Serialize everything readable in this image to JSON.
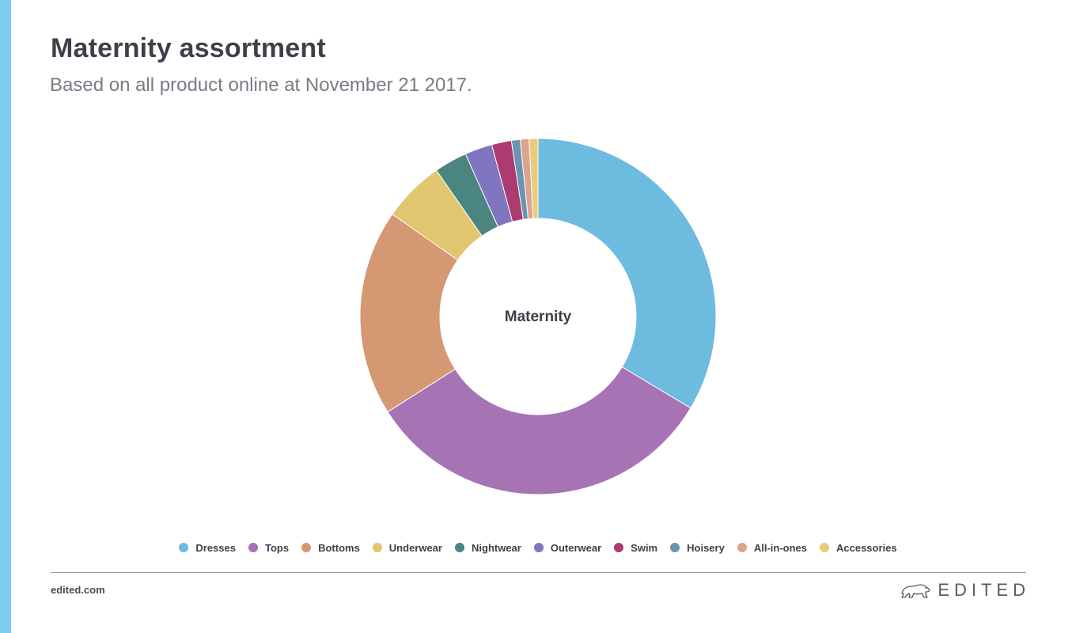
{
  "header": {
    "title": "Maternity assortment",
    "subtitle": "Based on all product online at November 21 2017."
  },
  "colors": {
    "accent_bar": "#7fcdf0",
    "text_dark": "#3f3f4a",
    "text_muted": "#7a7a85"
  },
  "chart_data": {
    "type": "pie",
    "subtype": "donut",
    "center_label": "Maternity",
    "legend_position": "bottom",
    "categories": [
      "Dresses",
      "Tops",
      "Bottoms",
      "Underwear",
      "Nightwear",
      "Outerwear",
      "Swim",
      "Hoisery",
      "All-in-ones",
      "Accessories"
    ],
    "values": [
      33.7,
      32.5,
      18.8,
      5.6,
      3.0,
      2.5,
      1.8,
      0.8,
      0.8,
      0.8
    ],
    "unit": "%",
    "colors": [
      "#6dbbdf",
      "#a673b4",
      "#d49873",
      "#e0c66e",
      "#4a8580",
      "#7f75c0",
      "#ac3c70",
      "#6b93b2",
      "#dca48d",
      "#e9cb7d"
    ]
  },
  "footer": {
    "url": "edited.com",
    "brand": "EDITED",
    "brand_logo_icon": "polar-bear-icon"
  }
}
